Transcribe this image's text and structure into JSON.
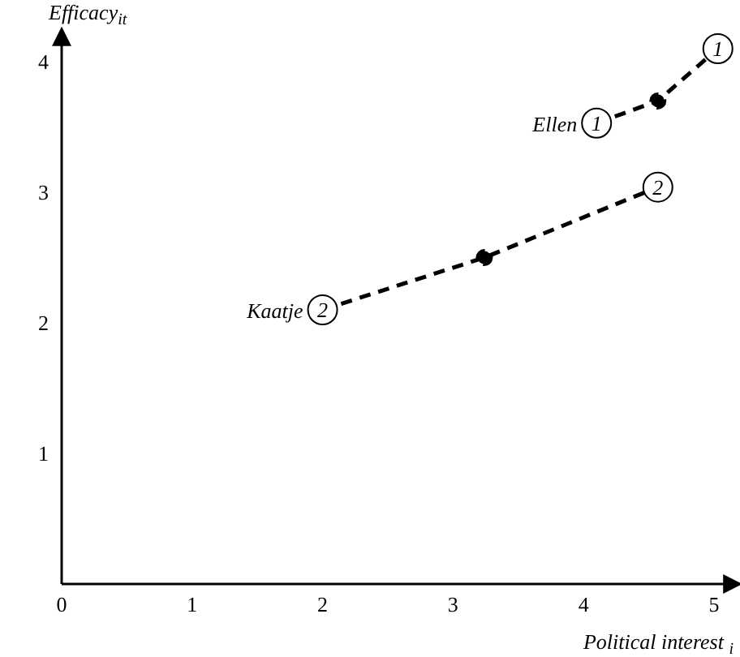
{
  "chart_data": {
    "type": "line",
    "xlabel": "Political interest $_{i}$",
    "ylabel": "Efficacy$_{it}$",
    "xlim": [
      0,
      5.1
    ],
    "ylim": [
      0,
      4.15
    ],
    "xticks": [
      0,
      1,
      2,
      3,
      4,
      5
    ],
    "yticks": [
      1,
      2,
      3,
      4
    ],
    "grid": false,
    "legend": false,
    "series": [
      {
        "name": "Kaatje",
        "color": "#000000",
        "line_style": "dashed",
        "marker": "circle",
        "x": [
          2,
          3.24,
          4.57
        ],
        "values": [
          2.1,
          2.5,
          3.04
        ]
      },
      {
        "name": "Ellen",
        "color": "#000000",
        "line_style": "dashed",
        "marker": "circle",
        "x": [
          4.1,
          4.57,
          5.03
        ],
        "values": [
          3.53,
          3.7,
          4.1
        ]
      }
    ],
    "annotations": [
      {
        "text": "2",
        "x": 2,
        "y": 2.1
      },
      {
        "text": "2",
        "x": 4.57,
        "y": 3.04
      },
      {
        "text": "1",
        "x": 4.1,
        "y": 3.53
      },
      {
        "text": "1",
        "x": 5.03,
        "y": 4.1
      }
    ]
  }
}
